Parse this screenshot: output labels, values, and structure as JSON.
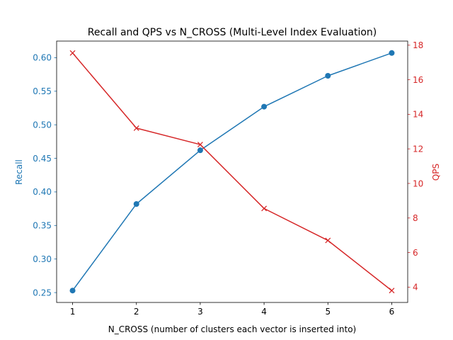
{
  "chart_data": {
    "type": "line",
    "title": "Recall and QPS vs N_CROSS (Multi-Level Index Evaluation)",
    "xlabel": "N_CROSS (number of clusters each vector is inserted into)",
    "x": [
      1,
      2,
      3,
      4,
      5,
      6
    ],
    "xticks": [
      "1",
      "2",
      "3",
      "4",
      "5",
      "6"
    ],
    "xlim": [
      0.75,
      6.25
    ],
    "series": [
      {
        "name": "Recall",
        "axis": "left",
        "values": [
          0.253,
          0.382,
          0.462,
          0.527,
          0.573,
          0.607
        ],
        "color": "#1f77b4",
        "marker": "circle"
      },
      {
        "name": "QPS",
        "axis": "right",
        "values": [
          17.55,
          13.2,
          12.25,
          8.55,
          6.7,
          3.8
        ],
        "color": "#d62728",
        "marker": "x"
      }
    ],
    "left_axis": {
      "label": "Recall",
      "color": "#1f77b4",
      "ylim": [
        0.2353,
        0.6247
      ],
      "ticks": [
        0.25,
        0.3,
        0.35,
        0.4,
        0.45,
        0.5,
        0.55,
        0.6
      ],
      "tick_labels": [
        "0.25",
        "0.30",
        "0.35",
        "0.40",
        "0.45",
        "0.50",
        "0.55",
        "0.60"
      ]
    },
    "right_axis": {
      "label": "QPS",
      "color": "#d62728",
      "ylim": [
        3.1125,
        18.2375
      ],
      "ticks": [
        4,
        6,
        8,
        10,
        12,
        14,
        16,
        18
      ],
      "tick_labels": [
        "4",
        "6",
        "8",
        "10",
        "12",
        "14",
        "16",
        "18"
      ]
    },
    "grid": false,
    "legend": "none"
  }
}
